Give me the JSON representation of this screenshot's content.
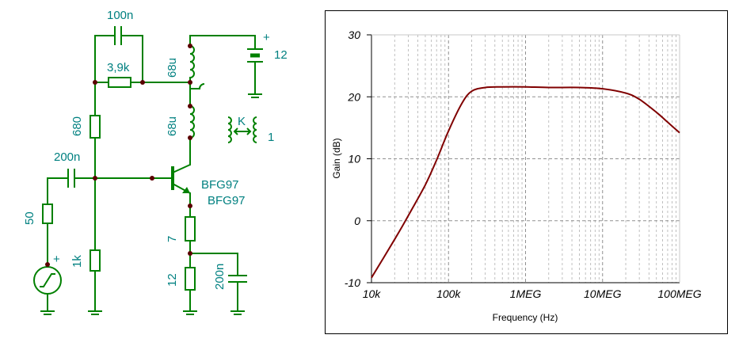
{
  "schematic": {
    "labels": {
      "c_feedback": "100n",
      "r_feedback": "3,9k",
      "l_top": "68u",
      "battery_value": "12",
      "battery_plus": "+",
      "r_bias_top": "680",
      "l_bottom": "68u",
      "coupling_k": "K",
      "coupling_value": "1",
      "c_input": "200n",
      "transistor_1": "BFG97",
      "transistor_2": "BFG97",
      "r_source": "50",
      "source_plus": "+",
      "r_bias_bottom": "1k",
      "r_emitter_top": "7",
      "r_emitter_bottom": "12",
      "c_emitter": "200n"
    }
  },
  "chart_data": {
    "type": "line",
    "xlabel": "Frequency (Hz)",
    "ylabel": "Gain (dB)",
    "x_scale": "log",
    "xlim": [
      10000,
      100000000
    ],
    "ylim": [
      -10,
      30
    ],
    "x_ticks": [
      10000,
      100000,
      1000000,
      10000000,
      100000000
    ],
    "x_tick_labels": [
      "10k",
      "100k",
      "1MEG",
      "10MEG",
      "100MEG"
    ],
    "y_ticks": [
      -10,
      0,
      10,
      20,
      30
    ],
    "y_tick_labels": [
      "-10",
      "0",
      "10",
      "20",
      "30"
    ],
    "grid": true,
    "series": [
      {
        "color": "#800000",
        "x": [
          10000,
          20000,
          30000,
          50000,
          70000,
          100000,
          150000,
          200000,
          300000,
          500000,
          1000000,
          2000000,
          5000000,
          10000000,
          20000000,
          30000000,
          50000000,
          70000000,
          100000000
        ],
        "y": [
          -9.2,
          -3.0,
          0.8,
          5.8,
          9.8,
          14.5,
          19.0,
          20.9,
          21.5,
          21.6,
          21.6,
          21.5,
          21.5,
          21.3,
          20.6,
          19.6,
          17.5,
          15.9,
          14.2
        ]
      }
    ]
  }
}
